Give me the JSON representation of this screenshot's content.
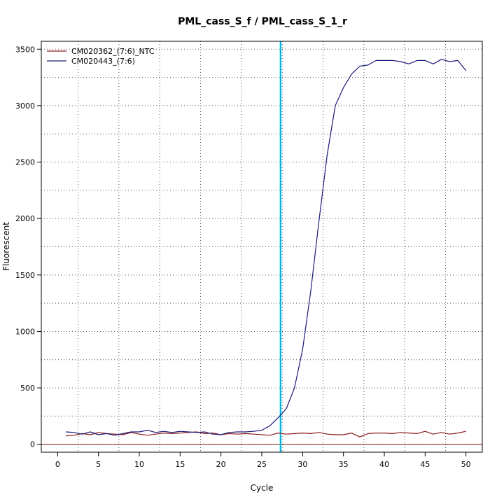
{
  "chart_data": {
    "type": "line",
    "title": "PML_cass_S_f / PML_cass_S_1_r",
    "xlabel": "Cycle",
    "ylabel": "Fluorescent",
    "xlim": [
      -2,
      52
    ],
    "ylim": [
      -70,
      3570
    ],
    "x_ticks": [
      0,
      5,
      10,
      15,
      20,
      25,
      30,
      35,
      40,
      45,
      50
    ],
    "y_ticks": [
      0,
      500,
      1000,
      1500,
      2000,
      2500,
      3000,
      3500
    ],
    "grid": true,
    "grid_style": "dotted",
    "legend_position": "top-left",
    "threshold_line": {
      "x": 27.3,
      "color": "#00e5ff"
    },
    "baseline": {
      "y": 0,
      "color": "#8b1a1a"
    },
    "series": [
      {
        "name": "CM020362_(7:6)_NTC",
        "color": "#8b1a1a",
        "x": [
          1,
          2,
          3,
          4,
          5,
          6,
          7,
          8,
          9,
          10,
          11,
          12,
          13,
          14,
          15,
          16,
          17,
          18,
          19,
          20,
          21,
          22,
          23,
          24,
          25,
          26,
          27,
          28,
          29,
          30,
          31,
          32,
          33,
          34,
          35,
          36,
          37,
          38,
          39,
          40,
          41,
          42,
          43,
          44,
          45,
          46,
          47,
          48,
          49,
          50
        ],
        "values": [
          75,
          80,
          95,
          85,
          105,
          95,
          90,
          85,
          105,
          90,
          80,
          90,
          100,
          95,
          100,
          105,
          110,
          95,
          100,
          85,
          95,
          90,
          95,
          90,
          85,
          80,
          100,
          90,
          95,
          100,
          95,
          105,
          90,
          85,
          85,
          100,
          65,
          95,
          100,
          100,
          95,
          105,
          100,
          95,
          115,
          90,
          105,
          90,
          100,
          115
        ]
      },
      {
        "name": "CM020443_(7:6)",
        "color": "#1a1a7a",
        "x": [
          1,
          2,
          3,
          4,
          5,
          6,
          7,
          8,
          9,
          10,
          11,
          12,
          13,
          14,
          15,
          16,
          17,
          18,
          19,
          20,
          21,
          22,
          23,
          24,
          25,
          26,
          27,
          28,
          29,
          30,
          31,
          32,
          33,
          34,
          35,
          36,
          37,
          38,
          39,
          40,
          41,
          42,
          43,
          44,
          45,
          46,
          47,
          48,
          49,
          50
        ],
        "values": [
          110,
          105,
          90,
          110,
          85,
          95,
          80,
          95,
          110,
          110,
          125,
          105,
          115,
          105,
          115,
          110,
          105,
          110,
          90,
          85,
          105,
          110,
          110,
          115,
          125,
          165,
          235,
          315,
          500,
          840,
          1360,
          1980,
          2560,
          3000,
          3160,
          3280,
          3350,
          3360,
          3400,
          3400,
          3400,
          3390,
          3370,
          3400,
          3400,
          3370,
          3410,
          3390,
          3400,
          3310
        ]
      }
    ]
  }
}
